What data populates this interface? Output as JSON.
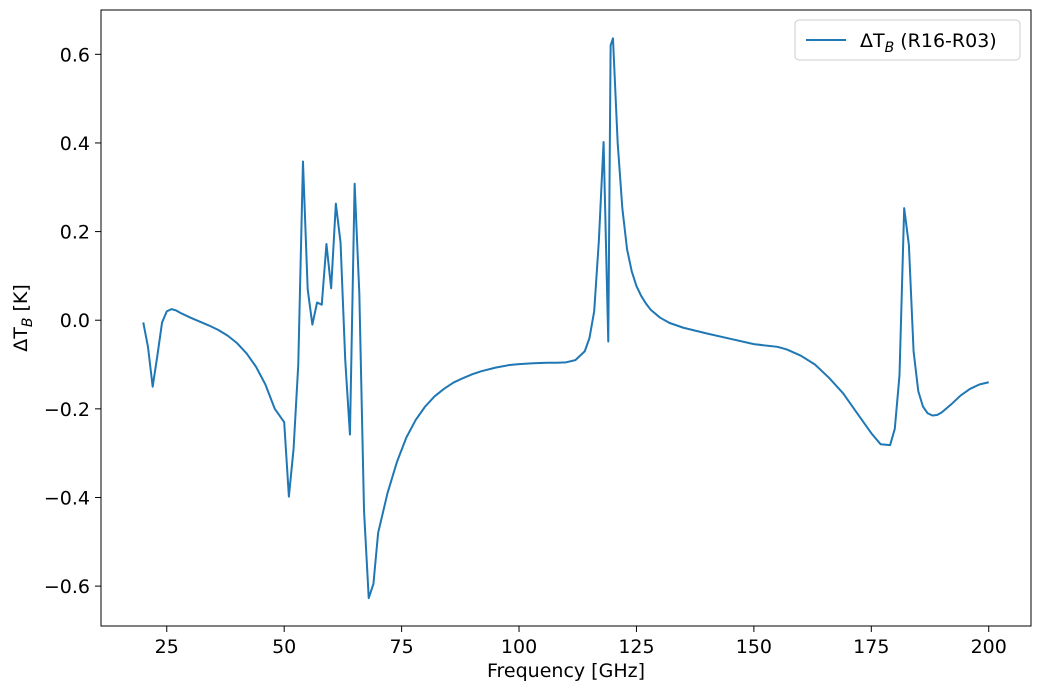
{
  "chart_data": {
    "type": "line",
    "title": "",
    "xlabel": "Frequency [GHz]",
    "ylabel_prefix": "ΔT",
    "ylabel_sub": "B",
    "ylabel_suffix": " [K]",
    "xlim": [
      11,
      209
    ],
    "ylim": [
      -0.69,
      0.7
    ],
    "xticks": [
      25,
      50,
      75,
      100,
      125,
      150,
      175,
      200
    ],
    "yticks": [
      -0.6,
      -0.4,
      -0.2,
      0.0,
      0.2,
      0.4,
      0.6
    ],
    "xtick_labels": [
      "25",
      "50",
      "75",
      "100",
      "125",
      "150",
      "175",
      "200"
    ],
    "ytick_labels": [
      "−0.6",
      "−0.4",
      "−0.2",
      "0.0",
      "0.2",
      "0.4",
      "0.6"
    ],
    "grid": false,
    "legend_position": "top-right",
    "series": [
      {
        "name_prefix": "ΔT",
        "name_sub": "B",
        "name_suffix": " (R16-R03)",
        "color": "#1f77b4",
        "x": [
          20,
          21,
          22,
          23,
          24,
          25,
          26,
          27,
          28,
          30,
          32,
          34,
          36,
          38,
          40,
          42,
          44,
          46,
          48,
          50,
          51,
          52,
          53,
          54,
          55,
          56,
          57,
          58,
          59,
          60,
          61,
          62,
          63,
          64,
          65,
          66,
          67,
          68,
          69,
          70,
          72,
          74,
          76,
          78,
          80,
          82,
          84,
          86,
          88,
          90,
          92,
          95,
          98,
          100,
          103,
          106,
          108,
          110,
          112,
          114,
          115,
          116,
          117,
          118,
          119,
          119.5,
          120,
          121,
          122,
          123,
          124,
          125,
          126,
          127,
          128,
          130,
          132,
          135,
          140,
          145,
          150,
          155,
          157,
          160,
          163,
          166,
          169,
          172,
          175,
          177,
          179,
          180,
          181,
          182,
          183,
          184,
          185,
          186,
          187,
          188,
          189,
          190,
          192,
          194,
          196,
          198,
          200
        ],
        "y": [
          -0.005,
          -0.06,
          -0.15,
          -0.08,
          -0.005,
          0.02,
          0.025,
          0.022,
          0.016,
          0.006,
          -0.003,
          -0.012,
          -0.022,
          -0.035,
          -0.052,
          -0.075,
          -0.105,
          -0.145,
          -0.2,
          -0.23,
          -0.398,
          -0.29,
          -0.1,
          0.358,
          0.07,
          -0.01,
          0.04,
          0.035,
          0.172,
          0.072,
          0.263,
          0.175,
          -0.09,
          -0.258,
          0.308,
          0.06,
          -0.43,
          -0.627,
          -0.595,
          -0.48,
          -0.39,
          -0.32,
          -0.265,
          -0.225,
          -0.195,
          -0.172,
          -0.155,
          -0.141,
          -0.131,
          -0.122,
          -0.115,
          -0.107,
          -0.101,
          -0.099,
          -0.097,
          -0.096,
          -0.096,
          -0.095,
          -0.09,
          -0.07,
          -0.04,
          0.02,
          0.18,
          0.402,
          -0.048,
          0.62,
          0.636,
          0.4,
          0.252,
          0.16,
          0.11,
          0.077,
          0.055,
          0.038,
          0.024,
          0.006,
          -0.006,
          -0.017,
          -0.03,
          -0.042,
          -0.054,
          -0.06,
          -0.066,
          -0.08,
          -0.1,
          -0.13,
          -0.165,
          -0.21,
          -0.255,
          -0.28,
          -0.282,
          -0.245,
          -0.125,
          0.253,
          0.17,
          -0.07,
          -0.16,
          -0.195,
          -0.21,
          -0.215,
          -0.214,
          -0.208,
          -0.19,
          -0.17,
          -0.155,
          -0.145,
          -0.14
        ]
      }
    ]
  }
}
